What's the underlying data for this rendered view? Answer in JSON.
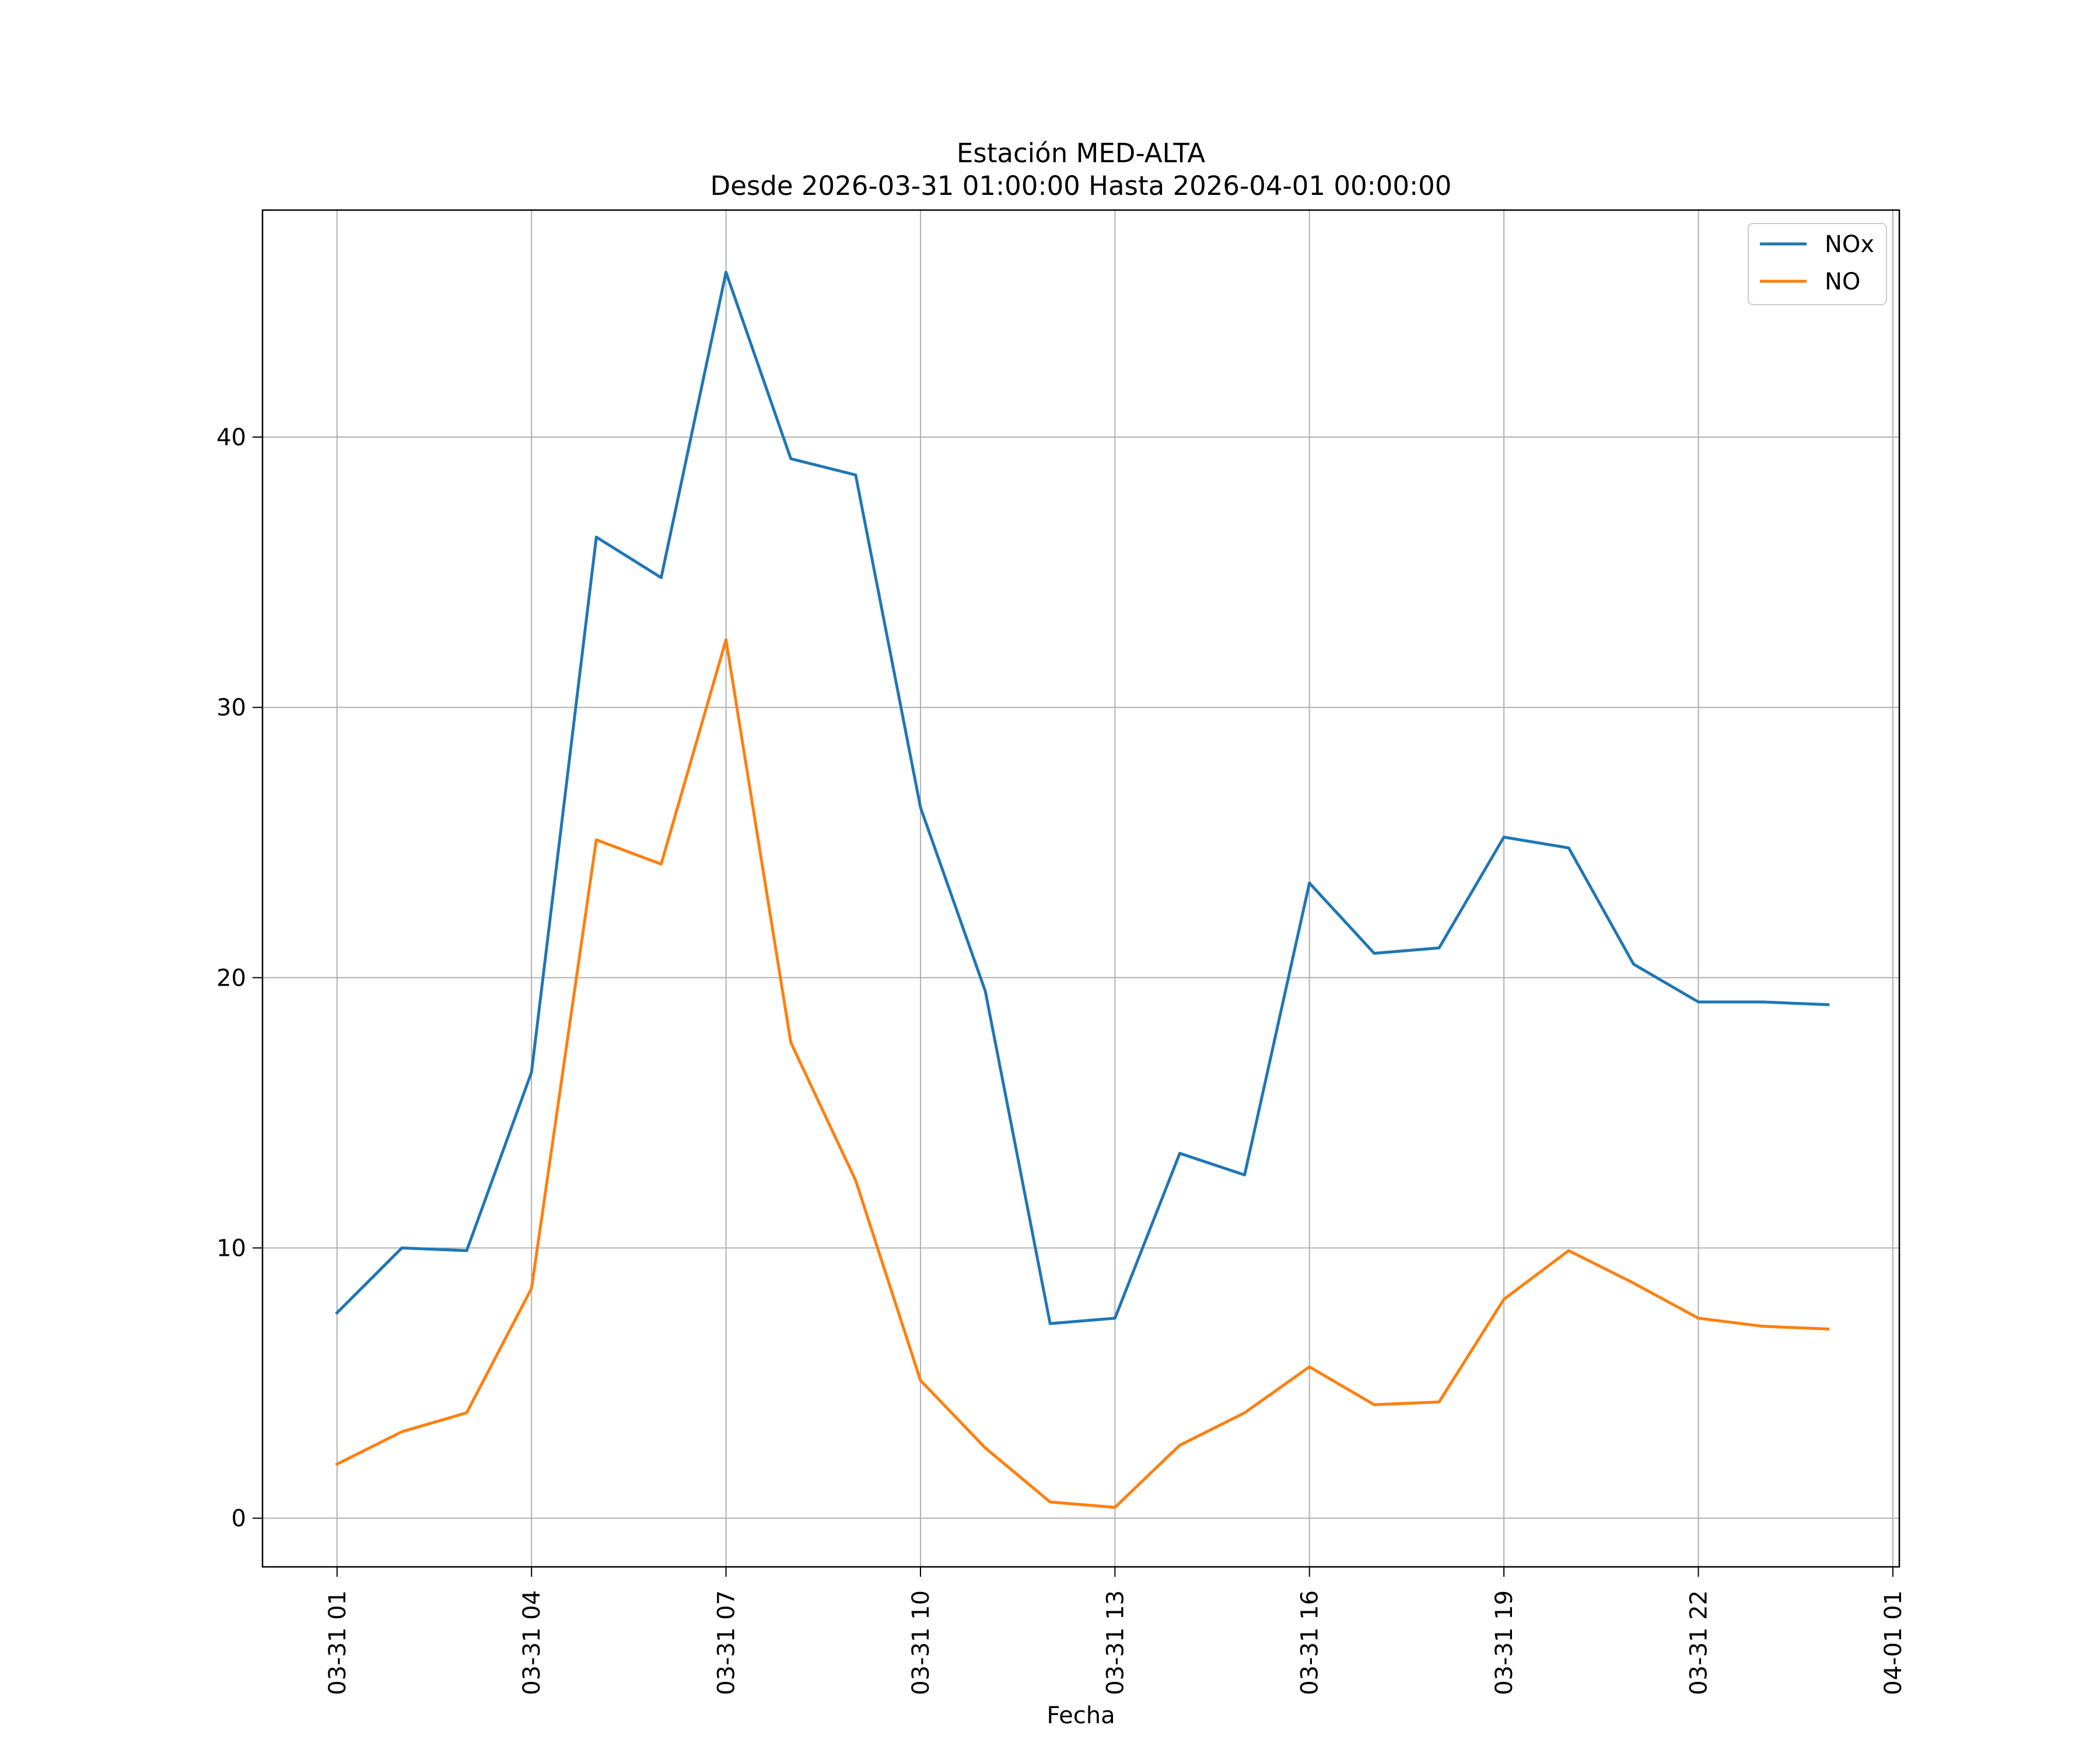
{
  "chart_data": {
    "type": "line",
    "title": "Estación MED-ALTA",
    "subtitle": "Desde 2026-03-31 01:00:00 Hasta 2026-04-01 00:00:00",
    "xlabel": "Fecha",
    "ylabel": "",
    "x": [
      "2026-03-31 01:00",
      "2026-03-31 02:00",
      "2026-03-31 03:00",
      "2026-03-31 04:00",
      "2026-03-31 05:00",
      "2026-03-31 06:00",
      "2026-03-31 07:00",
      "2026-03-31 08:00",
      "2026-03-31 09:00",
      "2026-03-31 10:00",
      "2026-03-31 11:00",
      "2026-03-31 12:00",
      "2026-03-31 13:00",
      "2026-03-31 14:00",
      "2026-03-31 15:00",
      "2026-03-31 16:00",
      "2026-03-31 17:00",
      "2026-03-31 18:00",
      "2026-03-31 19:00",
      "2026-03-31 20:00",
      "2026-03-31 21:00",
      "2026-03-31 22:00",
      "2026-03-31 23:00",
      "2026-04-01 00:00"
    ],
    "series": [
      {
        "name": "NOx",
        "color": "#1f77b4",
        "values": [
          7.6,
          10.0,
          9.9,
          16.5,
          36.3,
          34.8,
          46.1,
          39.2,
          38.6,
          26.3,
          19.5,
          7.2,
          7.4,
          13.5,
          12.7,
          23.5,
          20.9,
          21.1,
          25.2,
          24.8,
          20.5,
          19.1,
          19.1,
          19.0
        ]
      },
      {
        "name": "NO",
        "color": "#ff7f0e",
        "values": [
          2.0,
          3.2,
          3.9,
          8.5,
          25.1,
          24.2,
          32.5,
          17.6,
          12.5,
          5.1,
          2.6,
          0.6,
          0.4,
          2.7,
          3.9,
          5.6,
          4.2,
          4.3,
          8.1,
          9.9,
          8.7,
          7.4,
          7.1,
          7.0
        ]
      }
    ],
    "xticks": [
      "03-31 01",
      "03-31 04",
      "03-31 07",
      "03-31 10",
      "03-31 13",
      "03-31 16",
      "03-31 19",
      "03-31 22",
      "04-01 01"
    ],
    "xtick_hours": [
      0,
      3,
      6,
      9,
      12,
      15,
      18,
      21,
      24
    ],
    "yticks": [
      0,
      10,
      20,
      30,
      40
    ],
    "xlim_hours": [
      -1.15,
      24.1
    ],
    "ylim": [
      -1.8,
      48.4
    ],
    "grid": true,
    "legend_position": "top-right"
  }
}
